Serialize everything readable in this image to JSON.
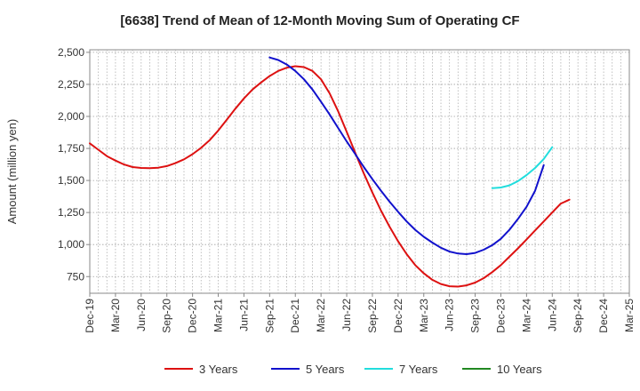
{
  "chart_data": {
    "type": "line",
    "title": "[6638]  Trend of Mean of 12-Month Moving Sum of Operating CF",
    "xlabel": "",
    "ylabel": "Amount (million yen)",
    "ylim": [
      620,
      2520
    ],
    "yticks": [
      750,
      1000,
      1250,
      1500,
      1750,
      2000,
      2250,
      2500
    ],
    "ytick_labels": [
      "750",
      "1,000",
      "1,250",
      "1,500",
      "1,750",
      "2,000",
      "2,250",
      "2,500"
    ],
    "x_ticks": [
      "Dec-19",
      "Mar-20",
      "Jun-20",
      "Sep-20",
      "Dec-20",
      "Mar-21",
      "Jun-21",
      "Sep-21",
      "Dec-21",
      "Mar-22",
      "Jun-22",
      "Sep-22",
      "Dec-22",
      "Mar-23",
      "Jun-23",
      "Sep-23",
      "Dec-23",
      "Mar-24",
      "Jun-24",
      "Sep-24",
      "Dec-24",
      "Mar-25"
    ],
    "grid": true,
    "legend_position": "bottom",
    "series": [
      {
        "name": "3 Years",
        "color": "#dd1111",
        "start_index": 0,
        "values": [
          1790,
          1740,
          1690,
          1655,
          1625,
          1605,
          1598,
          1596,
          1600,
          1612,
          1635,
          1665,
          1705,
          1755,
          1815,
          1890,
          1975,
          2060,
          2140,
          2210,
          2265,
          2315,
          2355,
          2380,
          2392,
          2385,
          2355,
          2290,
          2180,
          2040,
          1880,
          1715,
          1555,
          1405,
          1265,
          1140,
          1025,
          925,
          840,
          775,
          725,
          692,
          675,
          672,
          682,
          703,
          738,
          785,
          840,
          905,
          970,
          1040,
          1110,
          1180,
          1250,
          1320,
          1350
        ]
      },
      {
        "name": "5 Years",
        "color": "#1111cc",
        "start_index": 21,
        "values": [
          2460,
          2440,
          2405,
          2355,
          2290,
          2210,
          2115,
          2015,
          1910,
          1805,
          1705,
          1605,
          1510,
          1420,
          1335,
          1255,
          1180,
          1115,
          1060,
          1015,
          975,
          945,
          930,
          925,
          935,
          960,
          995,
          1045,
          1115,
          1200,
          1295,
          1420,
          1620
        ]
      },
      {
        "name": "7 Years",
        "color": "#22dddd",
        "start_index": 47,
        "values": [
          1440,
          1445,
          1462,
          1495,
          1542,
          1598,
          1668,
          1760
        ]
      },
      {
        "name": "10 Years",
        "color": "#228822",
        "start_index": 0,
        "values": []
      }
    ]
  }
}
